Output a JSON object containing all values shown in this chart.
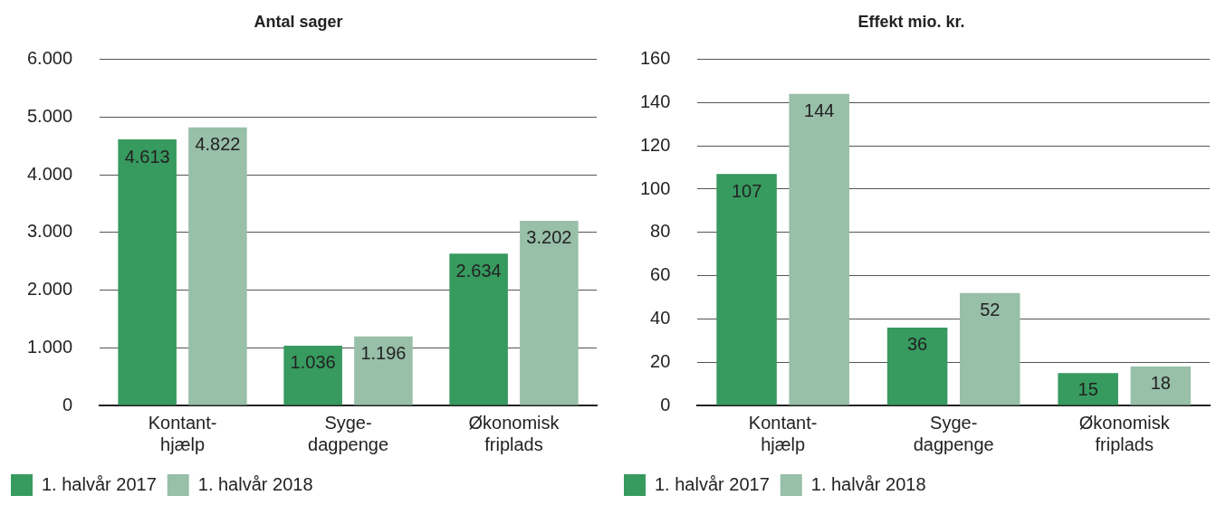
{
  "chart_data": [
    {
      "type": "bar",
      "title": "Antal sager",
      "categories": [
        "Kontant-\nhjælp",
        "Syge-\ndagpenge",
        "Økonomisk\nfriplads"
      ],
      "series": [
        {
          "name": "1. halvår 2017",
          "color": "#379a5f",
          "values": [
            4613,
            1036,
            2634
          ],
          "value_labels": [
            "4.613",
            "1.036",
            "2.634"
          ]
        },
        {
          "name": "1. halvår 2018",
          "color": "#98bfa8",
          "values": [
            4822,
            1196,
            3202
          ],
          "value_labels": [
            "4.822",
            "1.196",
            "3.202"
          ]
        }
      ],
      "ylim": [
        0,
        6000
      ],
      "yticks": [
        {
          "value": 0,
          "label": "0"
        },
        {
          "value": 1000,
          "label": "1.000"
        },
        {
          "value": 2000,
          "label": "2.000"
        },
        {
          "value": 3000,
          "label": "3.000"
        },
        {
          "value": 4000,
          "label": "4.000"
        },
        {
          "value": 5000,
          "label": "5.000"
        },
        {
          "value": 6000,
          "label": "6.000"
        }
      ],
      "grid": "y",
      "legend": "bottom"
    },
    {
      "type": "bar",
      "title": "Effekt mio. kr.",
      "categories": [
        "Kontant-\nhjælp",
        "Syge-\ndagpenge",
        "Økonomisk\nfriplads"
      ],
      "series": [
        {
          "name": "1. halvår 2017",
          "color": "#379a5f",
          "values": [
            107,
            36,
            15
          ]
        },
        {
          "name": "1. halvår 2018",
          "color": "#98bfa8",
          "values": [
            144,
            52,
            18
          ]
        }
      ],
      "ylim": [
        0,
        160
      ],
      "yticks": [
        0,
        20,
        40,
        60,
        80,
        100,
        120,
        140,
        160
      ],
      "grid": "y",
      "legend": "bottom",
      "data_labels": true
    }
  ]
}
